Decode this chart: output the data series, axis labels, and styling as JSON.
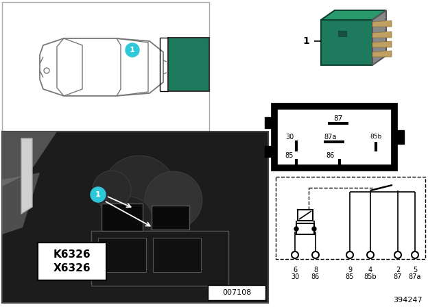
{
  "bg_color": "#ffffff",
  "part_number": "394247",
  "ref_number": "007108",
  "k_label": "K6326",
  "x_label": "X6326",
  "relay_color": "#1e7a5c",
  "relay_color_light": "#2a9a6e",
  "relay_color_dark": "#155040",
  "car_color": "#777777",
  "location_dot_color": "#2ec8d8",
  "pin_box_labels": [
    "87",
    "30",
    "87a",
    "85b",
    "85",
    "86"
  ],
  "schematic_pin_nums": [
    "6",
    "8",
    "9",
    "4",
    "2",
    "5"
  ],
  "schematic_pin_ids": [
    "30",
    "86",
    "85",
    "85b",
    "87",
    "87a"
  ]
}
